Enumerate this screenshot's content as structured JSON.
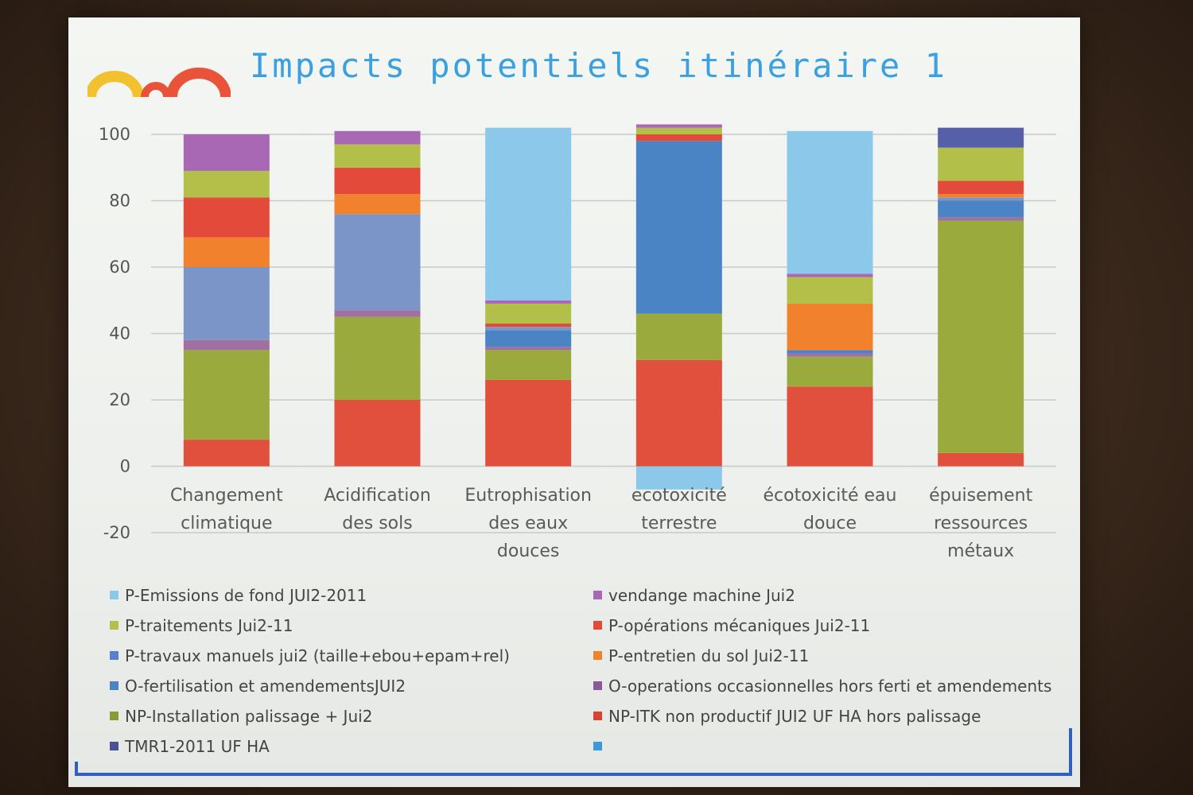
{
  "slide": {
    "title": "Impacts potentiels itinéraire 1"
  },
  "colors": {
    "title": "#3aa0e0",
    "frame": "#2f5fc0",
    "logo_dot": "#f2c12e",
    "logo_arc": "#e8533a"
  },
  "chart_data": {
    "type": "bar",
    "stacked": true,
    "categories": [
      "Changement climatique",
      "Acidification des sols",
      "Eutrophisation des eaux douces",
      "ecotoxicité terrestre",
      "écotoxicité eau douce",
      "épuisement ressources métaux"
    ],
    "category_lines": [
      [
        "Changement",
        "climatique"
      ],
      [
        "Acidification",
        "des sols"
      ],
      [
        "Eutrophisation",
        "des eaux",
        "douces"
      ],
      [
        "ecotoxicité",
        "terrestre"
      ],
      [
        "écotoxicité eau",
        "douce"
      ],
      [
        "épuisement",
        "ressources",
        "métaux"
      ]
    ],
    "ylim": [
      -20,
      100
    ],
    "yticks": [
      100,
      80,
      60,
      40,
      20,
      0,
      -20
    ],
    "grid": true,
    "legend_position": "bottom",
    "series": [
      {
        "name": "NP-ITK non productif JUI2 UF HA hors palissage",
        "color": "#e0503c",
        "values": [
          8,
          20,
          26,
          32,
          24,
          4
        ]
      },
      {
        "name": "NP-Installation palissage + Jui2",
        "color": "#9aaa3c",
        "values": [
          27,
          25,
          9,
          14,
          9,
          70
        ]
      },
      {
        "name": "O-operations occasionnelles hors ferti et amendements",
        "color": "#a070a0",
        "values": [
          3,
          2,
          1,
          0,
          1,
          1
        ]
      },
      {
        "name": "O-fertilisation et amendementsJUI2",
        "color": "#4a84c4",
        "values": [
          0,
          0,
          5,
          52,
          1,
          5
        ]
      },
      {
        "name": "P-travaux  manuels jui2 (taille+ebou+epam+rel)",
        "color": "#7c95c9",
        "values": [
          22,
          29,
          1,
          0,
          0,
          1
        ]
      },
      {
        "name": "P-entretien du sol Jui2-11",
        "color": "#f2812e",
        "values": [
          9,
          6,
          0,
          0,
          14,
          1
        ]
      },
      {
        "name": "P-opérations mécaniques Jui2-11",
        "color": "#e44a3a",
        "values": [
          12,
          8,
          1,
          2,
          0,
          4
        ]
      },
      {
        "name": "P-traitements Jui2-11",
        "color": "#b2c04a",
        "values": [
          8,
          7,
          6,
          2,
          8,
          10
        ]
      },
      {
        "name": "vendange machine Jui2",
        "color": "#a868b4",
        "values": [
          11,
          4,
          1,
          1,
          1,
          0
        ]
      },
      {
        "name": "TMR1-2011 UF HA",
        "color": "#5560a8",
        "values": [
          0,
          0,
          0,
          0,
          0,
          6
        ]
      },
      {
        "name": "P-Emissions de fond JUI2-2011",
        "color": "#8cc8ea",
        "values": [
          0,
          0,
          52,
          -7,
          43,
          0
        ]
      }
    ],
    "legend": [
      {
        "label": "P-Emissions de fond JUI2-2011",
        "color": "#8cc8ea"
      },
      {
        "label": "vendange machine Jui2",
        "color": "#a868b4"
      },
      {
        "label": "P-traitements Jui2-11",
        "color": "#b2c04a"
      },
      {
        "label": "P-opérations mécaniques Jui2-11",
        "color": "#e44a3a"
      },
      {
        "label": "P-travaux  manuels jui2 (taille+ebou+epam+rel)",
        "color": "#5b7fd0"
      },
      {
        "label": "P-entretien du sol Jui2-11",
        "color": "#f2812e"
      },
      {
        "label": "O-fertilisation et amendementsJUI2",
        "color": "#4a84c4"
      },
      {
        "label": "O-operations occasionnelles hors ferti et amendements",
        "color": "#8a5a94"
      },
      {
        "label": "NP-Installation palissage + Jui2",
        "color": "#8a9a34"
      },
      {
        "label": "NP-ITK non productif JUI2 UF HA hors palissage",
        "color": "#d9432f"
      },
      {
        "label": "TMR1-2011 UF HA",
        "color": "#4a5090"
      },
      {
        "label": "",
        "color": "#3a9ad9"
      }
    ]
  }
}
